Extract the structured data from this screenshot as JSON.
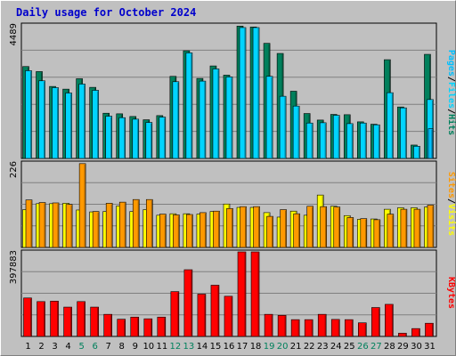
{
  "title": "Daily usage for October 2024",
  "colors": {
    "hits": "#00805c",
    "files": "#00d4ff",
    "pages": "#00c0ff",
    "visits": "#ffff00",
    "sites": "#ff9900",
    "kbytes": "#ff0000",
    "weekend_label": "#00805c",
    "weekday_label": "#000000"
  },
  "legend_top": {
    "pages": "Pages",
    "files": "Files",
    "hits": "Hits",
    "sep": "/"
  },
  "legend_mid": {
    "sites": "Sites",
    "visits": "Visits",
    "sep": "/"
  },
  "legend_bot": {
    "kbytes": "KBytes"
  },
  "chart_data": {
    "type": "bar",
    "categories": [
      "1",
      "2",
      "3",
      "4",
      "5",
      "6",
      "7",
      "8",
      "9",
      "10",
      "11",
      "12",
      "13",
      "14",
      "15",
      "16",
      "17",
      "18",
      "19",
      "20",
      "21",
      "22",
      "23",
      "24",
      "25",
      "26",
      "27",
      "28",
      "29",
      "30",
      "31"
    ],
    "weekend_days": [
      "5",
      "6",
      "12",
      "13",
      "19",
      "20",
      "26",
      "27"
    ],
    "panels": [
      {
        "name": "hits-files",
        "ymax_label": "4489",
        "ymax": 4489,
        "series": [
          {
            "name": "Hits",
            "values": [
              3090,
              2920,
              2420,
              2330,
              2680,
              2390,
              1520,
              1500,
              1410,
              1300,
              1440,
              2760,
              3620,
              2690,
              3110,
              2800,
              4450,
              4420,
              3870,
              3530,
              2260,
              1510,
              1290,
              1480,
              1470,
              1230,
              1150,
              3320,
              1730,
              450,
              3500
            ]
          },
          {
            "name": "Files",
            "values": [
              2950,
              2610,
              2380,
              2200,
              2500,
              2290,
              1420,
              1370,
              1320,
              1210,
              1390,
              2580,
              3550,
              2600,
              3010,
              2740,
              4400,
              4400,
              2760,
              2090,
              1760,
              1190,
              1200,
              1450,
              1170,
              1190,
              1130,
              2210,
              1700,
              410,
              1980
            ]
          },
          {
            "name": "Pages",
            "values": [
              0,
              0,
              0,
              0,
              0,
              0,
              0,
              0,
              0,
              0,
              0,
              0,
              0,
              0,
              0,
              0,
              0,
              0,
              0,
              0,
              0,
              0,
              0,
              0,
              0,
              0,
              0,
              0,
              0,
              0,
              1000
            ]
          }
        ]
      },
      {
        "name": "visits-sites",
        "ymax_label": "226",
        "ymax": 226,
        "series": [
          {
            "name": "Visits",
            "values": [
              101,
              117,
              117,
              118,
              100,
              95,
              96,
              111,
              96,
              101,
              86,
              90,
              90,
              89,
              96,
              116,
              107,
              107,
              93,
              81,
              97,
              86,
              140,
              110,
              85,
              75,
              76,
              102,
              106,
              106,
              108
            ]
          },
          {
            "name": "Sites",
            "values": [
              127,
              120,
              119,
              115,
              224,
              96,
              118,
              121,
              128,
              128,
              89,
              87,
              88,
              93,
              97,
              104,
              109,
              109,
              83,
              101,
              90,
              110,
              109,
              108,
              80,
              77,
              74,
              89,
              102,
              102,
              113
            ]
          }
        ]
      },
      {
        "name": "kbytes",
        "ymax_label": "397883",
        "ymax": 397883,
        "series": [
          {
            "name": "KBytes",
            "values": [
              181000,
              164000,
              166000,
              138000,
              164000,
              138000,
              104000,
              81000,
              91000,
              83000,
              91000,
              211000,
              314000,
              199000,
              241000,
              189000,
              397883,
              397883,
              104000,
              99000,
              79000,
              79000,
              104000,
              80000,
              79000,
              64000,
              136000,
              151000,
              15000,
              37000,
              62000
            ]
          }
        ]
      }
    ]
  }
}
